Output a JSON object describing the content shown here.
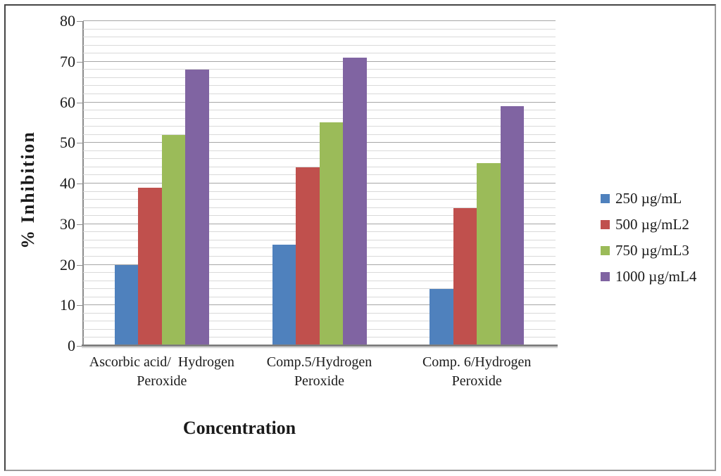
{
  "chart_data": {
    "type": "bar",
    "title": "",
    "xlabel": "Concentration",
    "ylabel": "% Inhibition",
    "ylim": [
      0,
      80
    ],
    "y_major_step": 10,
    "y_minor_step": 2,
    "yticks": [
      0,
      10,
      20,
      30,
      40,
      50,
      60,
      70,
      80
    ],
    "grid": "horizontal major and minor gridlines on",
    "legend_position": "right",
    "categories": [
      "Ascorbic acid/ Hydrogen Peroxide",
      "Comp.5/Hydrogen Peroxide",
      "Comp. 6/Hydrogen Peroxide"
    ],
    "category_lines": [
      [
        "Ascorbic acid/  Hydrogen",
        "Peroxide"
      ],
      [
        "Comp.5/Hydrogen",
        "Peroxide"
      ],
      [
        "Comp. 6/Hydrogen",
        "Peroxide"
      ]
    ],
    "series": [
      {
        "name": "250 µg/mL",
        "color": "#4F81BD",
        "values": [
          20,
          25,
          14
        ]
      },
      {
        "name": "500 µg/mL2",
        "color": "#C0504D",
        "values": [
          39,
          44,
          34
        ]
      },
      {
        "name": "750 µg/mL3",
        "color": "#9BBB59",
        "values": [
          52,
          55,
          45
        ]
      },
      {
        "name": "1000 µg/mL4",
        "color": "#8064A2",
        "values": [
          68,
          71,
          59
        ]
      }
    ],
    "axis_colors": {
      "major_gridline": "#a6a6a6",
      "minor_gridline": "#d9d9d9",
      "axis_line": "#8c8c8c",
      "baseline": "#7f7f7f"
    }
  }
}
